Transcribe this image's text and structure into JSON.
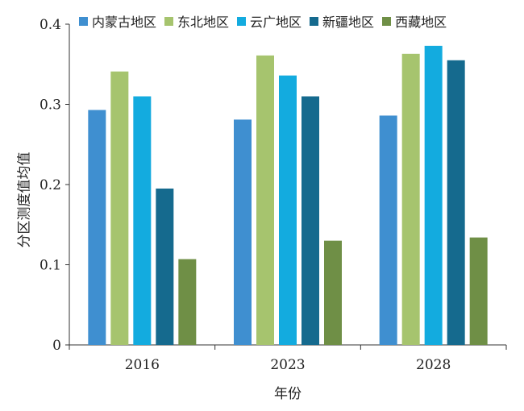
{
  "chart_data": {
    "type": "bar",
    "xlabel": "年份",
    "ylabel": "分区测度值均值",
    "categories": [
      "2016",
      "2023",
      "2028"
    ],
    "series": [
      {
        "name": "内蒙古地区",
        "color": "#3f8fd0",
        "values": [
          0.293,
          0.281,
          0.286
        ]
      },
      {
        "name": "东北地区",
        "color": "#a6c46e",
        "values": [
          0.341,
          0.361,
          0.363
        ]
      },
      {
        "name": "云广地区",
        "color": "#13abdf",
        "values": [
          0.31,
          0.336,
          0.373
        ]
      },
      {
        "name": "新疆地区",
        "color": "#156a8e",
        "values": [
          0.195,
          0.31,
          0.355
        ]
      },
      {
        "name": "西藏地区",
        "color": "#6f8f46",
        "values": [
          0.107,
          0.13,
          0.134
        ]
      }
    ],
    "ylim": [
      0,
      0.4
    ],
    "yticks": [
      "0",
      "0.1",
      "0.2",
      "0.3",
      "0.4"
    ],
    "legend_position": "top",
    "grid": false
  }
}
